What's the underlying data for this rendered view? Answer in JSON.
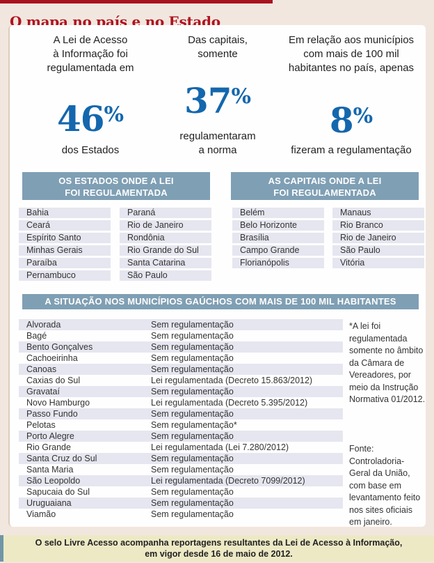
{
  "page": {
    "title": "O mapa no país e no Estado"
  },
  "stats": [
    {
      "intro": "A Lei de Acesso\nà Informação foi\nregulamentada em",
      "number": "46",
      "percent": "%",
      "caption": "dos Estados"
    },
    {
      "intro": "Das capitais,\nsomente",
      "number": "37",
      "percent": "%",
      "caption": "regulamentaram\na norma"
    },
    {
      "intro": "Em relação aos municípios\ncom mais de 100 mil\nhabitantes no país, apenas",
      "number": "8",
      "percent": "%",
      "caption": "fizeram a regulamentação"
    }
  ],
  "states": {
    "header": "OS ESTADOS ONDE A LEI\nFOI REGULAMENTADA",
    "col1": [
      "Bahia",
      "Ceará",
      "Espírito Santo",
      "Minhas Gerais",
      "Paraíba",
      "Pernambuco"
    ],
    "col2": [
      "Paraná",
      "Rio de Janeiro",
      "Rondônia",
      "Rio Grande do Sul",
      "Santa Catarina",
      "São Paulo"
    ]
  },
  "capitals": {
    "header": "AS CAPITAIS ONDE A LEI\nFOI REGULAMENTADA",
    "col1": [
      "Belém",
      "Belo Horizonte",
      "Brasília",
      "Campo Grande",
      "Florianópolis"
    ],
    "col2": [
      "Manaus",
      "Rio Branco",
      "Rio de Janeiro",
      "São Paulo",
      "Vitória"
    ]
  },
  "municipalities": {
    "header": "A SITUAÇÃO NOS MUNICÍPIOS GAÚCHOS COM MAIS DE 100 MIL HABITANTES",
    "rows": [
      {
        "name": "Alvorada",
        "status": "Sem regulamentação"
      },
      {
        "name": "Bagé",
        "status": "Sem regulamentação"
      },
      {
        "name": "Bento Gonçalves",
        "status": "Sem regulamentação"
      },
      {
        "name": "Cachoeirinha",
        "status": "Sem regulamentação"
      },
      {
        "name": "Canoas",
        "status": "Sem regulamentação"
      },
      {
        "name": "Caxias do Sul",
        "status": "Lei regulamentada (Decreto 15.863/2012)"
      },
      {
        "name": "Gravataí",
        "status": "Sem regulamentação"
      },
      {
        "name": "Novo Hamburgo",
        "status": "Lei regulamentada (Decreto 5.395/2012)"
      },
      {
        "name": "Passo Fundo",
        "status": "Sem regulamentação"
      },
      {
        "name": "Pelotas",
        "status": "Sem regulamentação*"
      },
      {
        "name": "Porto Alegre",
        "status": "Sem regulamentação"
      },
      {
        "name": "Rio Grande",
        "status": "Lei regulamentada (Lei 7.280/2012)"
      },
      {
        "name": "Santa Cruz do Sul",
        "status": "Sem regulamentação"
      },
      {
        "name": "Santa Maria",
        "status": "Sem regulamentação"
      },
      {
        "name": "São Leopoldo",
        "status": "Lei regulamentada (Decreto 7099/2012)"
      },
      {
        "name": "Sapucaia do Sul",
        "status": "Sem regulamentação"
      },
      {
        "name": "Uruguaiana",
        "status": "Sem regulamentação"
      },
      {
        "name": "Viamão",
        "status": "Sem regulamentação"
      }
    ],
    "footnote": "*A lei foi\nregulamentada\nsomente no âmbito\nda Câmara de\nVereadores, por\nmeio da Instrução\nNormativa 01/2012.",
    "source": "Fonte:\nControladoria-\nGeral da União,\ncom base em\nlevantamento feito\nnos sites oficiais\nem janeiro."
  },
  "footer": {
    "text": "O selo Livre Acesso acompanha reportagens resultantes da Lei de Acesso à Informação,\nem vigor desde 16 de maio de 2012."
  },
  "colors": {
    "accent_red": "#b01320",
    "accent_blue": "#1467ad",
    "header_bar_blue": "#7f9fb4",
    "row_stripe": "#e6e6f0",
    "footer_bg": "#ede9c5",
    "footer_stripe": "#7096a6",
    "page_bg": "#f1e7df"
  }
}
